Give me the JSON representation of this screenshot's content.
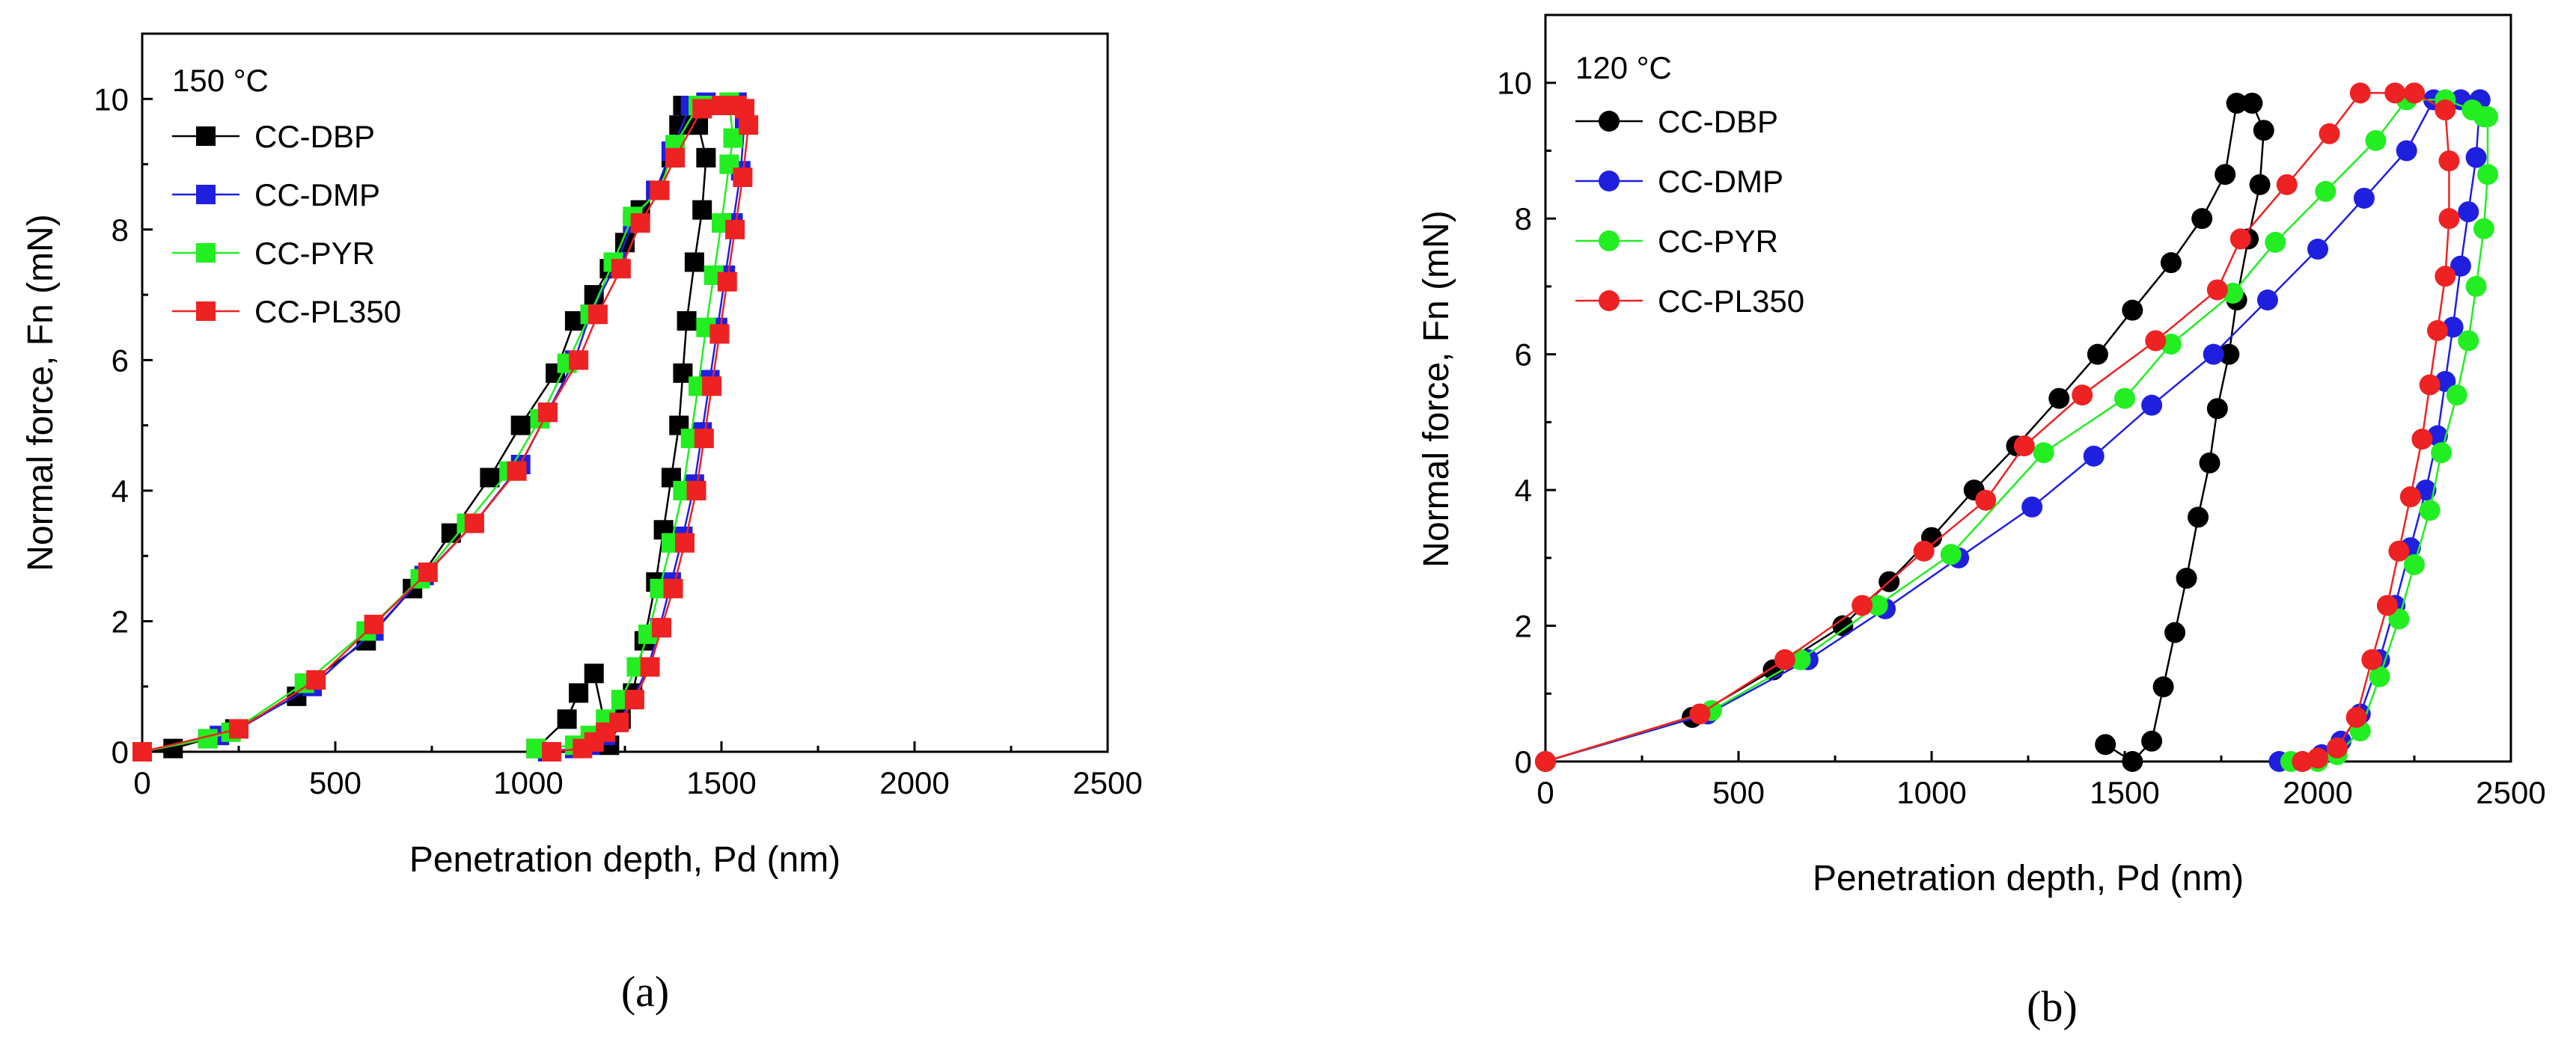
{
  "figure": {
    "captions": [
      "(a)",
      "(b)"
    ]
  },
  "chart_data": [
    {
      "type": "line",
      "title": "150 °C",
      "xlabel": "Penetration depth, Pd (nm)",
      "ylabel": "Normal force, Fn (mN)",
      "xlim": [
        0,
        2500
      ],
      "ylim": [
        0,
        11
      ],
      "xticks": [
        0,
        500,
        1000,
        1500,
        2000,
        2500
      ],
      "yticks": [
        0,
        2,
        4,
        6,
        8,
        10
      ],
      "xtick_labels": [
        "0",
        "500",
        "1000",
        "1500",
        "2000",
        "2500"
      ],
      "ytick_labels": [
        "0",
        "2",
        "4",
        "6",
        "8",
        "10"
      ],
      "marker": "square",
      "legend_position": "top-left",
      "series": [
        {
          "name": "CC-DBP",
          "color": "#000000",
          "loading": {
            "x": [
              0,
              80,
              170,
              240,
              400,
              430,
              580,
              700,
              800,
              900,
              980,
              1070,
              1120,
              1170,
              1210,
              1250,
              1290,
              1330,
              1370,
              1390,
              1400,
              1420
            ],
            "y": [
              0,
              0.05,
              0.2,
              0.35,
              0.85,
              1.05,
              1.7,
              2.5,
              3.35,
              4.2,
              5.0,
              5.8,
              6.6,
              7.0,
              7.4,
              7.8,
              8.3,
              8.6,
              9.1,
              9.6,
              9.9,
              9.9
            ]
          },
          "unloading": {
            "x": [
              1420,
              1440,
              1460,
              1450,
              1430,
              1410,
              1400,
              1390,
              1370,
              1350,
              1330,
              1300,
              1270,
              1240,
              1210,
              1170,
              1130,
              1100,
              1020
            ],
            "y": [
              9.9,
              9.6,
              9.1,
              8.3,
              7.5,
              6.6,
              5.8,
              5.0,
              4.2,
              3.4,
              2.6,
              1.7,
              0.9,
              0.5,
              0.1,
              1.2,
              0.9,
              0.5,
              0.05
            ]
          }
        },
        {
          "name": "CC-DMP",
          "color": "#1f1fe0",
          "loading": {
            "x": [
              0,
              200,
              250,
              440,
              600,
              730,
              860,
              980,
              1050,
              1120,
              1160,
              1230,
              1270,
              1330,
              1370,
              1420,
              1460,
              1500,
              1540
            ],
            "y": [
              0,
              0.25,
              0.35,
              1.0,
              1.85,
              2.7,
              3.5,
              4.4,
              5.2,
              6.0,
              6.7,
              7.5,
              8.1,
              8.6,
              9.2,
              9.9,
              9.95,
              9.9,
              9.95
            ]
          },
          "unloading": {
            "x": [
              1540,
              1560,
              1550,
              1530,
              1510,
              1490,
              1470,
              1450,
              1430,
              1400,
              1370,
              1340,
              1310,
              1270,
              1230,
              1200,
              1160,
              1120,
              1050
            ],
            "y": [
              9.95,
              9.7,
              8.9,
              8.1,
              7.3,
              6.5,
              5.7,
              4.9,
              4.1,
              3.3,
              2.6,
              1.9,
              1.3,
              0.8,
              0.45,
              0.25,
              0.1,
              0.05,
              0.0
            ]
          }
        },
        {
          "name": "CC-PYR",
          "color": "#22ee22",
          "loading": {
            "x": [
              0,
              170,
              230,
              420,
              580,
              720,
              840,
              950,
              1030,
              1100,
              1160,
              1220,
              1270,
              1340,
              1380,
              1440,
              1480,
              1500,
              1520
            ],
            "y": [
              0,
              0.2,
              0.3,
              1.05,
              1.85,
              2.65,
              3.5,
              4.3,
              5.1,
              5.95,
              6.7,
              7.5,
              8.2,
              8.6,
              9.3,
              9.9,
              9.9,
              9.9,
              9.95
            ]
          },
          "unloading": {
            "x": [
              1520,
              1530,
              1520,
              1500,
              1480,
              1460,
              1440,
              1420,
              1400,
              1370,
              1340,
              1310,
              1280,
              1240,
              1200,
              1160,
              1120,
              1020
            ],
            "y": [
              9.95,
              9.4,
              9.0,
              8.1,
              7.3,
              6.5,
              5.6,
              4.8,
              4.0,
              3.2,
              2.5,
              1.8,
              1.3,
              0.8,
              0.5,
              0.25,
              0.1,
              0.05
            ]
          }
        },
        {
          "name": "CC-PL350",
          "color": "#ee2222",
          "loading": {
            "x": [
              0,
              250,
              450,
              600,
              740,
              860,
              970,
              1050,
              1130,
              1180,
              1240,
              1290,
              1340,
              1380,
              1450,
              1500,
              1540,
              1560
            ],
            "y": [
              0,
              0.35,
              1.1,
              1.95,
              2.75,
              3.5,
              4.3,
              5.2,
              6.0,
              6.7,
              7.4,
              8.1,
              8.6,
              9.1,
              9.85,
              9.9,
              9.9,
              9.85
            ]
          },
          "unloading": {
            "x": [
              1560,
              1570,
              1555,
              1535,
              1515,
              1495,
              1475,
              1455,
              1435,
              1405,
              1375,
              1345,
              1315,
              1275,
              1235,
              1200,
              1170,
              1140,
              1060
            ],
            "y": [
              9.85,
              9.6,
              8.8,
              8.0,
              7.2,
              6.4,
              5.6,
              4.8,
              4.0,
              3.2,
              2.5,
              1.9,
              1.3,
              0.8,
              0.45,
              0.3,
              0.15,
              0.05,
              0.0
            ]
          }
        }
      ]
    },
    {
      "type": "line",
      "title": "120 °C",
      "xlabel": "Penetration depth, Pd (nm)",
      "ylabel": "Normal force, Fn (mN)",
      "xlim": [
        0,
        2500
      ],
      "ylim": [
        0,
        11
      ],
      "xticks": [
        0,
        500,
        1000,
        1500,
        2000,
        2500
      ],
      "yticks": [
        0,
        2,
        4,
        6,
        8,
        10
      ],
      "xtick_labels": [
        "0",
        "500",
        "1000",
        "1500",
        "2000",
        "2500"
      ],
      "ytick_labels": [
        "0",
        "2",
        "4",
        "6",
        "8",
        "10"
      ],
      "marker": "circle",
      "legend_position": "top-left",
      "series": [
        {
          "name": "CC-DBP",
          "color": "#000000",
          "loading": {
            "x": [
              0,
              380,
              590,
              770,
              890,
              1000,
              1110,
              1220,
              1330,
              1430,
              1520,
              1620,
              1700,
              1760,
              1790,
              1830
            ],
            "y": [
              0,
              0.65,
              1.35,
              2.0,
              2.65,
              3.3,
              4.0,
              4.65,
              5.35,
              6.0,
              6.65,
              7.35,
              8.0,
              8.65,
              9.7,
              9.7
            ]
          },
          "unloading": {
            "x": [
              1830,
              1860,
              1850,
              1820,
              1790,
              1770,
              1740,
              1720,
              1690,
              1660,
              1630,
              1600,
              1570,
              1520,
              1450
            ],
            "y": [
              9.7,
              9.3,
              8.5,
              7.7,
              6.8,
              6.0,
              5.2,
              4.4,
              3.6,
              2.7,
              1.9,
              1.1,
              0.3,
              0.0,
              0.25
            ]
          }
        },
        {
          "name": "CC-DMP",
          "color": "#1f1fe0",
          "loading": {
            "x": [
              0,
              420,
              680,
              880,
              1070,
              1260,
              1420,
              1570,
              1730,
              1870,
              2000,
              2120,
              2230,
              2300,
              2370,
              2420
            ],
            "y": [
              0,
              0.7,
              1.5,
              2.25,
              3.0,
              3.75,
              4.5,
              5.25,
              6.0,
              6.8,
              7.55,
              8.3,
              9.0,
              9.75,
              9.75,
              9.75
            ]
          },
          "unloading": {
            "x": [
              2420,
              2410,
              2390,
              2370,
              2350,
              2330,
              2310,
              2280,
              2240,
              2200,
              2160,
              2110,
              2060,
              2010,
              1960,
              1900
            ],
            "y": [
              9.75,
              8.9,
              8.1,
              7.3,
              6.4,
              5.6,
              4.8,
              4.0,
              3.15,
              2.3,
              1.5,
              0.7,
              0.3,
              0.1,
              0.0,
              0.0
            ]
          }
        },
        {
          "name": "CC-PYR",
          "color": "#22ee22",
          "loading": {
            "x": [
              0,
              430,
              660,
              860,
              1050,
              1290,
              1500,
              1620,
              1780,
              1890,
              2020,
              2150,
              2230,
              2330,
              2400,
              2430
            ],
            "y": [
              0,
              0.75,
              1.5,
              2.3,
              3.05,
              4.55,
              5.35,
              6.15,
              6.9,
              7.65,
              8.4,
              9.15,
              9.75,
              9.75,
              9.6,
              9.5
            ]
          },
          "unloading": {
            "x": [
              2430,
              2440,
              2440,
              2430,
              2410,
              2390,
              2360,
              2320,
              2290,
              2250,
              2210,
              2160,
              2110,
              2050,
              2000,
              1930
            ],
            "y": [
              9.5,
              9.5,
              8.65,
              7.85,
              7.0,
              6.2,
              5.4,
              4.55,
              3.7,
              2.9,
              2.1,
              1.25,
              0.45,
              0.1,
              0.0,
              0.0
            ]
          }
        },
        {
          "name": "CC-PL350",
          "color": "#ee2222",
          "loading": {
            "x": [
              0,
              400,
              620,
              820,
              980,
              1140,
              1240,
              1390,
              1580,
              1740,
              1800,
              1920,
              2030,
              2110,
              2200,
              2250
            ],
            "y": [
              0,
              0.7,
              1.5,
              2.3,
              3.1,
              3.85,
              4.65,
              5.4,
              6.2,
              6.95,
              7.7,
              8.5,
              9.25,
              9.85,
              9.85,
              9.85
            ]
          },
          "unloading": {
            "x": [
              2250,
              2330,
              2340,
              2340,
              2330,
              2310,
              2290,
              2270,
              2240,
              2210,
              2180,
              2140,
              2100,
              2050,
              2000,
              1960
            ],
            "y": [
              9.85,
              9.6,
              8.85,
              8.0,
              7.15,
              6.35,
              5.55,
              4.75,
              3.9,
              3.1,
              2.3,
              1.5,
              0.65,
              0.2,
              0.05,
              0.0
            ]
          }
        }
      ]
    }
  ]
}
